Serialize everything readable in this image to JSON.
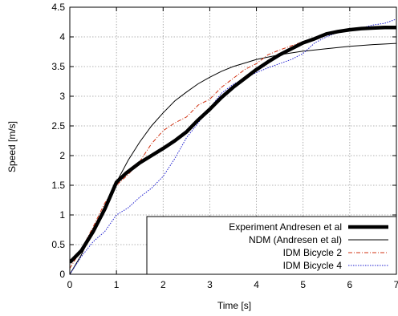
{
  "chart_data": {
    "type": "line",
    "xlabel": "Time [s]",
    "ylabel": "Speed [m/s]",
    "xlim": [
      0,
      7
    ],
    "ylim": [
      0,
      4.5
    ],
    "xticks": [
      "0",
      "1",
      "2",
      "3",
      "4",
      "5",
      "6",
      "7"
    ],
    "yticks": [
      "0",
      "0.5",
      "1",
      "1.5",
      "2",
      "2.5",
      "3",
      "3.5",
      "4",
      "4.5"
    ],
    "grid": true,
    "legend_position": "bottom-right",
    "series": [
      {
        "name": "Experiment Andresen et al",
        "color": "#000000",
        "style": "solid-thick",
        "x": [
          0,
          0.25,
          0.5,
          0.75,
          1.0,
          1.2,
          1.5,
          1.75,
          2.0,
          2.25,
          2.5,
          2.75,
          3.0,
          3.25,
          3.5,
          3.75,
          4.0,
          4.25,
          4.5,
          4.75,
          5.0,
          5.25,
          5.5,
          5.75,
          6.0,
          6.25,
          6.5,
          6.75,
          7.0
        ],
        "values": [
          0.2,
          0.4,
          0.72,
          1.1,
          1.55,
          1.7,
          1.88,
          2.0,
          2.12,
          2.25,
          2.4,
          2.6,
          2.78,
          2.98,
          3.15,
          3.3,
          3.45,
          3.58,
          3.7,
          3.8,
          3.9,
          3.97,
          4.05,
          4.09,
          4.12,
          4.14,
          4.15,
          4.16,
          4.16
        ]
      },
      {
        "name": "NDM (Andresen et al)",
        "color": "#000000",
        "style": "solid-thin",
        "x": [
          0,
          0.25,
          0.5,
          0.75,
          1.0,
          1.25,
          1.5,
          1.75,
          2.0,
          2.25,
          2.5,
          2.75,
          3.0,
          3.25,
          3.5,
          3.75,
          4.0,
          4.5,
          5.0,
          5.5,
          6.0,
          6.5,
          7.0
        ],
        "values": [
          0.0,
          0.33,
          0.75,
          1.15,
          1.55,
          1.92,
          2.23,
          2.5,
          2.72,
          2.92,
          3.07,
          3.21,
          3.32,
          3.42,
          3.5,
          3.56,
          3.62,
          3.7,
          3.76,
          3.8,
          3.84,
          3.87,
          3.89
        ]
      },
      {
        "name": "IDM Bicycle 2",
        "color": "#d03010",
        "style": "dash-dot",
        "x": [
          0,
          0.25,
          0.5,
          0.75,
          1.0,
          1.25,
          1.5,
          1.75,
          2.0,
          2.25,
          2.5,
          2.75,
          3.0,
          3.25,
          3.5,
          3.75,
          4.0,
          4.25,
          4.5,
          4.75,
          5.0,
          5.5,
          6.0,
          6.5,
          7.0
        ],
        "values": [
          0.1,
          0.42,
          0.8,
          1.2,
          1.5,
          1.68,
          1.9,
          2.2,
          2.42,
          2.55,
          2.65,
          2.85,
          2.95,
          3.15,
          3.3,
          3.45,
          3.55,
          3.7,
          3.78,
          3.85,
          3.92,
          4.05,
          4.12,
          4.16,
          4.17
        ]
      },
      {
        "name": "IDM Bicycle 4",
        "color": "#2020d0",
        "style": "dotted",
        "x": [
          0,
          0.25,
          0.5,
          0.75,
          1.0,
          1.25,
          1.5,
          1.75,
          2.0,
          2.25,
          2.5,
          2.75,
          3.0,
          3.25,
          3.5,
          3.75,
          4.0,
          4.25,
          4.5,
          4.75,
          5.0,
          5.25,
          5.5,
          5.75,
          6.0,
          6.25,
          6.5,
          6.75,
          7.0
        ],
        "values": [
          0.0,
          0.3,
          0.55,
          0.72,
          1.0,
          1.12,
          1.3,
          1.45,
          1.65,
          1.95,
          2.3,
          2.55,
          2.8,
          3.05,
          3.2,
          3.3,
          3.4,
          3.48,
          3.55,
          3.62,
          3.72,
          3.9,
          4.0,
          4.08,
          4.13,
          4.15,
          4.2,
          4.23,
          4.3
        ]
      }
    ]
  }
}
